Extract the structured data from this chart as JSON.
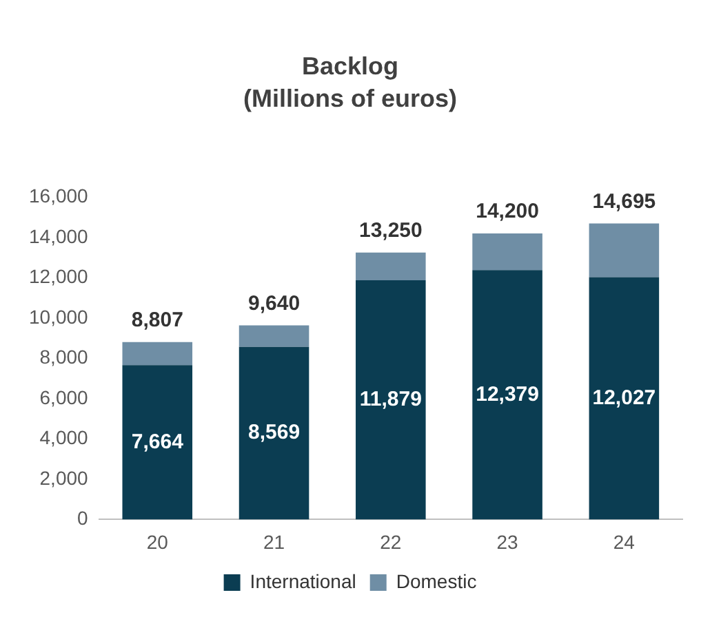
{
  "chart_data": {
    "type": "bar",
    "title": "Backlog",
    "subtitle": "(Millions of euros)",
    "categories": [
      "20",
      "21",
      "22",
      "23",
      "24"
    ],
    "stacked": true,
    "series": [
      {
        "name": "International",
        "color": "#0b3d52",
        "values": [
          7664,
          8569,
          11879,
          12379,
          12027
        ],
        "value_labels": [
          "7,664",
          "8,569",
          "11,879",
          "12,379",
          "12,027"
        ]
      },
      {
        "name": "Domestic",
        "color": "#6f8ea5",
        "values": [
          1143,
          1071,
          1371,
          1821,
          2668
        ]
      }
    ],
    "totals": [
      "8,807",
      "9,640",
      "13,250",
      "14,200",
      "14,695"
    ],
    "ylim": [
      0,
      16000
    ],
    "yticks": [
      0,
      {
        "value": 2000,
        "label": "2,000"
      },
      {
        "value": 4000,
        "label": "4,000"
      },
      {
        "value": 6000,
        "label": "6,000"
      },
      {
        "value": 8000,
        "label": "8,000"
      },
      {
        "value": 10000,
        "label": "10,000"
      },
      {
        "value": 12000,
        "label": "12,000"
      },
      {
        "value": 14000,
        "label": "14,000"
      },
      {
        "value": 16000,
        "label": "16,000"
      }
    ],
    "grid": false,
    "legend": "bottom"
  }
}
